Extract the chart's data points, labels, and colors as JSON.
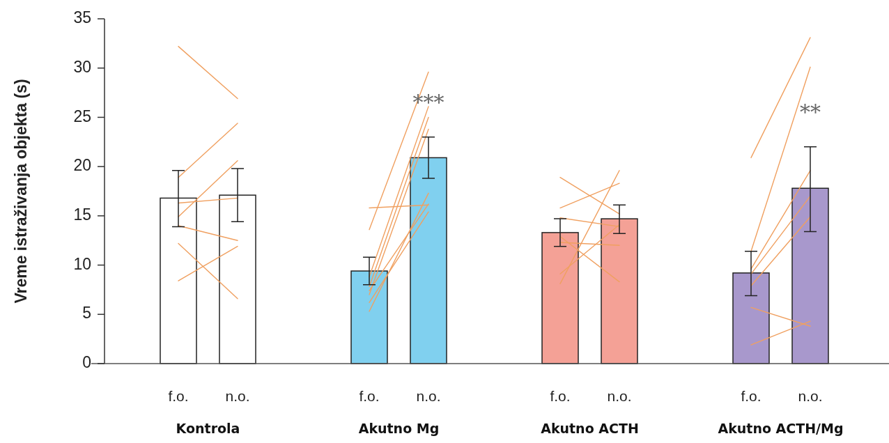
{
  "chart_data": {
    "type": "bar",
    "ylabel": "Vreme istraživanja objekta (s)",
    "categories": [
      "f.o.",
      "n.o.",
      "f.o.",
      "n.o.",
      "f.o.",
      "n.o.",
      "f.o.",
      "n.o."
    ],
    "ylim": [
      0,
      35
    ],
    "yticks": [
      0,
      5,
      10,
      15,
      20,
      25,
      30,
      35
    ],
    "series": [
      {
        "values": [
          16.8,
          17.1,
          9.4,
          20.9,
          13.3,
          14.7,
          9.2,
          17.8
        ],
        "colors": [
          "#ffffff",
          "#ffffff",
          "#80d0ef",
          "#80d0ef",
          "#f4a196",
          "#f4a196",
          "#a898cc",
          "#a898cc"
        ],
        "errors": [
          [
            13.9,
            19.6
          ],
          [
            14.4,
            19.8
          ],
          [
            8.0,
            10.8
          ],
          [
            18.8,
            23.0
          ],
          [
            11.9,
            14.7
          ],
          [
            13.2,
            16.1
          ],
          [
            6.9,
            11.4
          ],
          [
            13.4,
            22.0
          ]
        ]
      },
      {
        "type": "line",
        "color": "#f0a060",
        "values": [
          32.2,
          26.9,
          null,
          null,
          null,
          null,
          null,
          null
        ]
      },
      {
        "type": "line",
        "color": "#f0a060",
        "values": [
          18.9,
          24.4,
          null,
          null,
          null,
          null,
          null,
          null
        ]
      },
      {
        "type": "line",
        "color": "#f0a060",
        "values": [
          14.9,
          20.6,
          null,
          null,
          null,
          null,
          null,
          null
        ]
      },
      {
        "type": "line",
        "color": "#f0a060",
        "values": [
          16.3,
          16.8,
          null,
          null,
          null,
          null,
          null,
          null
        ]
      },
      {
        "type": "line",
        "color": "#f0a060",
        "values": [
          14.0,
          12.5,
          null,
          null,
          null,
          null,
          null,
          null
        ]
      },
      {
        "type": "line",
        "color": "#f0a060",
        "values": [
          12.2,
          6.6,
          null,
          null,
          null,
          null,
          null,
          null
        ]
      },
      {
        "type": "line",
        "color": "#f0a060",
        "values": [
          8.4,
          11.9,
          null,
          null,
          null,
          null,
          null,
          null
        ]
      },
      {
        "type": "line",
        "color": "#f0a060",
        "values": [
          null,
          null,
          13.6,
          29.6,
          null,
          null,
          null,
          null
        ]
      },
      {
        "type": "line",
        "color": "#f0a060",
        "values": [
          null,
          null,
          15.8,
          16.1,
          null,
          null,
          null,
          null
        ]
      },
      {
        "type": "line",
        "color": "#f0a060",
        "values": [
          null,
          null,
          8.8,
          26.1,
          null,
          null,
          null,
          null
        ]
      },
      {
        "type": "line",
        "color": "#f0a060",
        "values": [
          null,
          null,
          7.8,
          25.0,
          null,
          null,
          null,
          null
        ]
      },
      {
        "type": "line",
        "color": "#f0a060",
        "values": [
          null,
          null,
          7.0,
          23.8,
          null,
          null,
          null,
          null
        ]
      },
      {
        "type": "line",
        "color": "#f0a060",
        "values": [
          null,
          null,
          5.3,
          17.3,
          null,
          null,
          null,
          null
        ]
      },
      {
        "type": "line",
        "color": "#f0a060",
        "values": [
          null,
          null,
          7.4,
          16.2,
          null,
          null,
          null,
          null
        ]
      },
      {
        "type": "line",
        "color": "#f0a060",
        "values": [
          null,
          null,
          6.2,
          15.4,
          null,
          null,
          null,
          null
        ]
      },
      {
        "type": "line",
        "color": "#f0a060",
        "values": [
          null,
          null,
          null,
          null,
          18.9,
          15.2,
          null,
          null
        ]
      },
      {
        "type": "line",
        "color": "#f0a060",
        "values": [
          null,
          null,
          null,
          null,
          15.8,
          18.3,
          null,
          null
        ]
      },
      {
        "type": "line",
        "color": "#f0a060",
        "values": [
          null,
          null,
          null,
          null,
          14.8,
          13.9,
          null,
          null
        ]
      },
      {
        "type": "line",
        "color": "#f0a060",
        "values": [
          null,
          null,
          null,
          null,
          8.1,
          19.6,
          null,
          null
        ]
      },
      {
        "type": "line",
        "color": "#f0a060",
        "values": [
          null,
          null,
          null,
          null,
          12.9,
          8.3,
          null,
          null
        ]
      },
      {
        "type": "line",
        "color": "#f0a060",
        "values": [
          null,
          null,
          null,
          null,
          12.3,
          12.0,
          null,
          null
        ]
      },
      {
        "type": "line",
        "color": "#f0a060",
        "values": [
          null,
          null,
          null,
          null,
          9.1,
          14.1,
          null,
          null
        ]
      },
      {
        "type": "line",
        "color": "#f0a060",
        "values": [
          null,
          null,
          null,
          null,
          null,
          null,
          20.9,
          33.1
        ]
      },
      {
        "type": "line",
        "color": "#f0a060",
        "values": [
          null,
          null,
          null,
          null,
          null,
          null,
          11.4,
          30.1
        ]
      },
      {
        "type": "line",
        "color": "#f0a060",
        "values": [
          null,
          null,
          null,
          null,
          null,
          null,
          9.6,
          19.6
        ]
      },
      {
        "type": "line",
        "color": "#f0a060",
        "values": [
          null,
          null,
          null,
          null,
          null,
          null,
          9.1,
          17.0
        ]
      },
      {
        "type": "line",
        "color": "#f0a060",
        "values": [
          null,
          null,
          null,
          null,
          null,
          null,
          7.9,
          14.9
        ]
      },
      {
        "type": "line",
        "color": "#f0a060",
        "values": [
          null,
          null,
          null,
          null,
          null,
          null,
          5.7,
          3.8
        ]
      },
      {
        "type": "line",
        "color": "#f0a060",
        "values": [
          null,
          null,
          null,
          null,
          null,
          null,
          1.9,
          4.3
        ]
      }
    ],
    "annotations": [
      "***",
      "**",
      "Kontrola",
      "Akutno Mg",
      "Akutno ACTH",
      "Akutno ACTH/Mg"
    ]
  }
}
